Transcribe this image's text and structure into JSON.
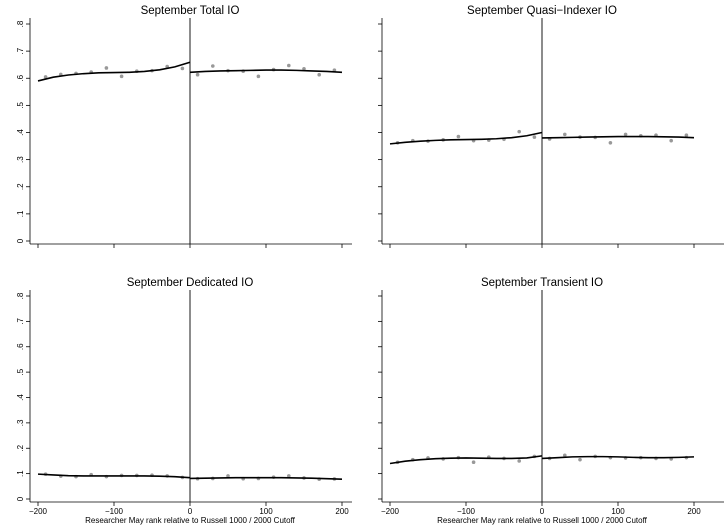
{
  "chart_data": [
    {
      "type": "scatter",
      "title": "September Total IO",
      "xlabel": "",
      "ylabel": "",
      "xlim": [
        -200,
        200
      ],
      "ylim": [
        0,
        0.8
      ],
      "xticks": [],
      "xtick_labels": [],
      "yticks": [
        0,
        0.1,
        0.2,
        0.3,
        0.4,
        0.5,
        0.6,
        0.7,
        0.8
      ],
      "ytick_labels": [
        "0",
        ".1",
        ".2",
        ".3",
        ".4",
        ".5",
        ".6",
        ".7",
        ".8"
      ],
      "cutoff_x": 0,
      "grid": false,
      "legend": "none",
      "points": {
        "x": [
          -190,
          -170,
          -150,
          -130,
          -110,
          -90,
          -70,
          -50,
          -30,
          -10,
          10,
          30,
          50,
          70,
          90,
          110,
          130,
          150,
          170,
          190
        ],
        "y": [
          0.605,
          0.614,
          0.618,
          0.623,
          0.638,
          0.607,
          0.626,
          0.628,
          0.643,
          0.636,
          0.613,
          0.645,
          0.628,
          0.626,
          0.607,
          0.632,
          0.647,
          0.635,
          0.613,
          0.63
        ]
      },
      "fit_left": {
        "x": [
          -200,
          -180,
          -160,
          -140,
          -120,
          -100,
          -80,
          -60,
          -40,
          -20,
          0
        ],
        "y": [
          0.59,
          0.604,
          0.612,
          0.617,
          0.62,
          0.621,
          0.622,
          0.625,
          0.631,
          0.642,
          0.659
        ]
      },
      "fit_right": {
        "x": [
          0,
          20,
          40,
          60,
          80,
          100,
          120,
          140,
          160,
          180,
          200
        ],
        "y": [
          0.622,
          0.625,
          0.627,
          0.628,
          0.629,
          0.63,
          0.63,
          0.629,
          0.627,
          0.625,
          0.622
        ]
      }
    },
    {
      "type": "scatter",
      "title": "September Quasi−Indexer IO",
      "xlabel": "",
      "ylabel": "",
      "xlim": [
        -200,
        200
      ],
      "ylim": [
        0,
        0.8
      ],
      "xticks": [],
      "xtick_labels": [],
      "yticks": [
        0,
        0.1,
        0.2,
        0.3,
        0.4,
        0.5,
        0.6,
        0.7,
        0.8
      ],
      "ytick_labels": [],
      "cutoff_x": 0,
      "grid": false,
      "legend": "none",
      "points": {
        "x": [
          -190,
          -170,
          -150,
          -130,
          -110,
          -90,
          -70,
          -50,
          -30,
          -10,
          10,
          30,
          50,
          70,
          90,
          110,
          130,
          150,
          170,
          190
        ],
        "y": [
          0.362,
          0.37,
          0.368,
          0.373,
          0.385,
          0.37,
          0.372,
          0.375,
          0.403,
          0.383,
          0.376,
          0.393,
          0.383,
          0.382,
          0.362,
          0.393,
          0.388,
          0.39,
          0.37,
          0.39
        ]
      },
      "fit_left": {
        "x": [
          -200,
          -180,
          -160,
          -140,
          -120,
          -100,
          -80,
          -60,
          -40,
          -20,
          0
        ],
        "y": [
          0.358,
          0.364,
          0.368,
          0.371,
          0.373,
          0.374,
          0.375,
          0.377,
          0.381,
          0.388,
          0.4
        ]
      },
      "fit_right": {
        "x": [
          0,
          20,
          40,
          60,
          80,
          100,
          120,
          140,
          160,
          180,
          200
        ],
        "y": [
          0.38,
          0.381,
          0.382,
          0.383,
          0.384,
          0.385,
          0.385,
          0.385,
          0.384,
          0.383,
          0.381
        ]
      }
    },
    {
      "type": "scatter",
      "title": "September Dedicated IO",
      "xlabel": "Researcher May rank relative to Russell 1000 / 2000 Cutoff",
      "ylabel": "",
      "xlim": [
        -200,
        200
      ],
      "ylim": [
        0,
        0.8
      ],
      "xticks": [
        -200,
        -100,
        0,
        100,
        200
      ],
      "xtick_labels": [
        "−200",
        "−100",
        "0",
        "100",
        "200"
      ],
      "yticks": [
        0,
        0.1,
        0.2,
        0.3,
        0.4,
        0.5,
        0.6,
        0.7,
        0.8
      ],
      "ytick_labels": [
        "0",
        ".1",
        ".2",
        ".3",
        ".4",
        ".5",
        ".6",
        ".7",
        ".8"
      ],
      "cutoff_x": 0,
      "grid": false,
      "legend": "none",
      "points": {
        "x": [
          -190,
          -170,
          -150,
          -130,
          -110,
          -90,
          -70,
          -50,
          -30,
          -10,
          10,
          30,
          50,
          70,
          90,
          110,
          130,
          150,
          170,
          190
        ],
        "y": [
          0.098,
          0.09,
          0.088,
          0.096,
          0.088,
          0.093,
          0.093,
          0.094,
          0.091,
          0.085,
          0.08,
          0.081,
          0.091,
          0.08,
          0.081,
          0.086,
          0.091,
          0.083,
          0.078,
          0.079
        ]
      },
      "fit_left": {
        "x": [
          -200,
          -180,
          -160,
          -140,
          -120,
          -100,
          -80,
          -60,
          -40,
          -20,
          0
        ],
        "y": [
          0.098,
          0.095,
          0.092,
          0.091,
          0.091,
          0.091,
          0.091,
          0.091,
          0.09,
          0.088,
          0.084
        ]
      },
      "fit_right": {
        "x": [
          0,
          20,
          40,
          60,
          80,
          100,
          120,
          140,
          160,
          180,
          200
        ],
        "y": [
          0.081,
          0.082,
          0.083,
          0.084,
          0.084,
          0.084,
          0.084,
          0.083,
          0.082,
          0.08,
          0.078
        ]
      }
    },
    {
      "type": "scatter",
      "title": "September Transient IO",
      "xlabel": "Researcher May rank relative to Russell 1000 / 2000 Cutoff",
      "ylabel": "",
      "xlim": [
        -200,
        200
      ],
      "ylim": [
        0,
        0.8
      ],
      "xticks": [
        -200,
        -100,
        0,
        100,
        200
      ],
      "xtick_labels": [
        "−200",
        "−100",
        "0",
        "100",
        "200"
      ],
      "yticks": [
        0,
        0.1,
        0.2,
        0.3,
        0.4,
        0.5,
        0.6,
        0.7,
        0.8
      ],
      "ytick_labels": [],
      "cutoff_x": 0,
      "grid": false,
      "legend": "none",
      "points": {
        "x": [
          -190,
          -170,
          -150,
          -130,
          -110,
          -90,
          -70,
          -50,
          -30,
          -10,
          10,
          30,
          50,
          70,
          90,
          110,
          130,
          150,
          170,
          190
        ],
        "y": [
          0.145,
          0.155,
          0.162,
          0.158,
          0.163,
          0.145,
          0.165,
          0.16,
          0.15,
          0.168,
          0.16,
          0.172,
          0.155,
          0.168,
          0.163,
          0.162,
          0.163,
          0.16,
          0.158,
          0.163
        ]
      },
      "fit_left": {
        "x": [
          -200,
          -180,
          -160,
          -140,
          -120,
          -100,
          -80,
          -60,
          -40,
          -20,
          0
        ],
        "y": [
          0.14,
          0.149,
          0.155,
          0.159,
          0.161,
          0.162,
          0.161,
          0.16,
          0.16,
          0.162,
          0.17
        ]
      },
      "fit_right": {
        "x": [
          0,
          20,
          40,
          60,
          80,
          100,
          120,
          140,
          160,
          180,
          200
        ],
        "y": [
          0.16,
          0.163,
          0.166,
          0.167,
          0.167,
          0.166,
          0.164,
          0.163,
          0.163,
          0.164,
          0.166
        ]
      }
    }
  ]
}
